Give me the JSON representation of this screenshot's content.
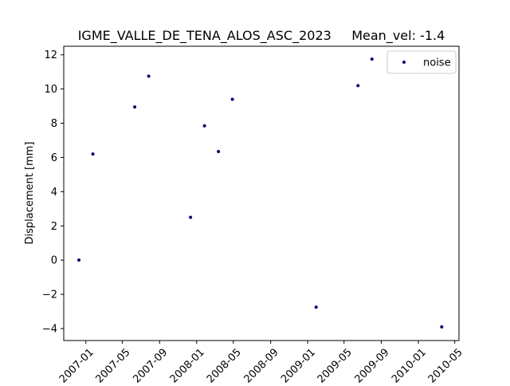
{
  "chart_data": {
    "type": "scatter",
    "title": "IGME_VALLE_DE_TENA_ALOS_ASC_2023     Mean_vel: -1.4",
    "xlabel": "",
    "ylabel": "Displacement [mm]",
    "xlim": [
      "2006-10-20",
      "2010-05-15"
    ],
    "ylim": [
      -4.7,
      12.5
    ],
    "x_ticks": [
      "2007-01",
      "2007-05",
      "2007-09",
      "2008-01",
      "2008-05",
      "2008-09",
      "2009-01",
      "2009-05",
      "2009-09",
      "2010-01",
      "2010-05"
    ],
    "y_ticks": [
      -4,
      -2,
      0,
      2,
      4,
      6,
      8,
      10,
      12
    ],
    "grid": false,
    "legend": "upper right",
    "series": [
      {
        "name": "noise",
        "color": "#000080",
        "marker": "dot",
        "points": [
          {
            "x": "2006-12-09",
            "y": 0.0
          },
          {
            "x": "2007-01-24",
            "y": 6.2
          },
          {
            "x": "2007-06-11",
            "y": 8.95
          },
          {
            "x": "2007-07-27",
            "y": 10.75
          },
          {
            "x": "2007-12-12",
            "y": 2.5
          },
          {
            "x": "2008-01-27",
            "y": 7.85
          },
          {
            "x": "2008-03-13",
            "y": 6.35
          },
          {
            "x": "2008-04-28",
            "y": 9.4
          },
          {
            "x": "2009-01-29",
            "y": -2.75
          },
          {
            "x": "2009-06-16",
            "y": 10.2
          },
          {
            "x": "2009-08-01",
            "y": 11.75
          },
          {
            "x": "2010-03-19",
            "y": -3.9
          }
        ]
      }
    ]
  }
}
